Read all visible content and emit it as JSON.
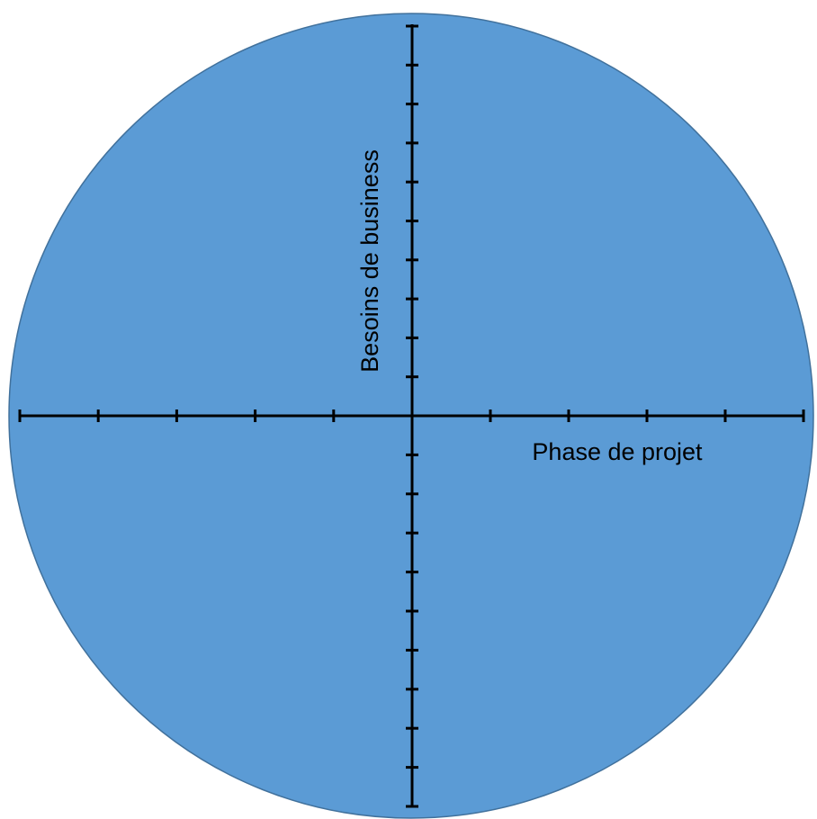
{
  "diagram": {
    "x_axis_label": "Phase de projet",
    "y_axis_label": "Besoins de business",
    "circle_fill": "#5b9bd5",
    "circle_stroke": "#41719c",
    "axis_color": "#000000",
    "x_ticks_per_side": 5,
    "y_ticks_per_side": 10
  }
}
